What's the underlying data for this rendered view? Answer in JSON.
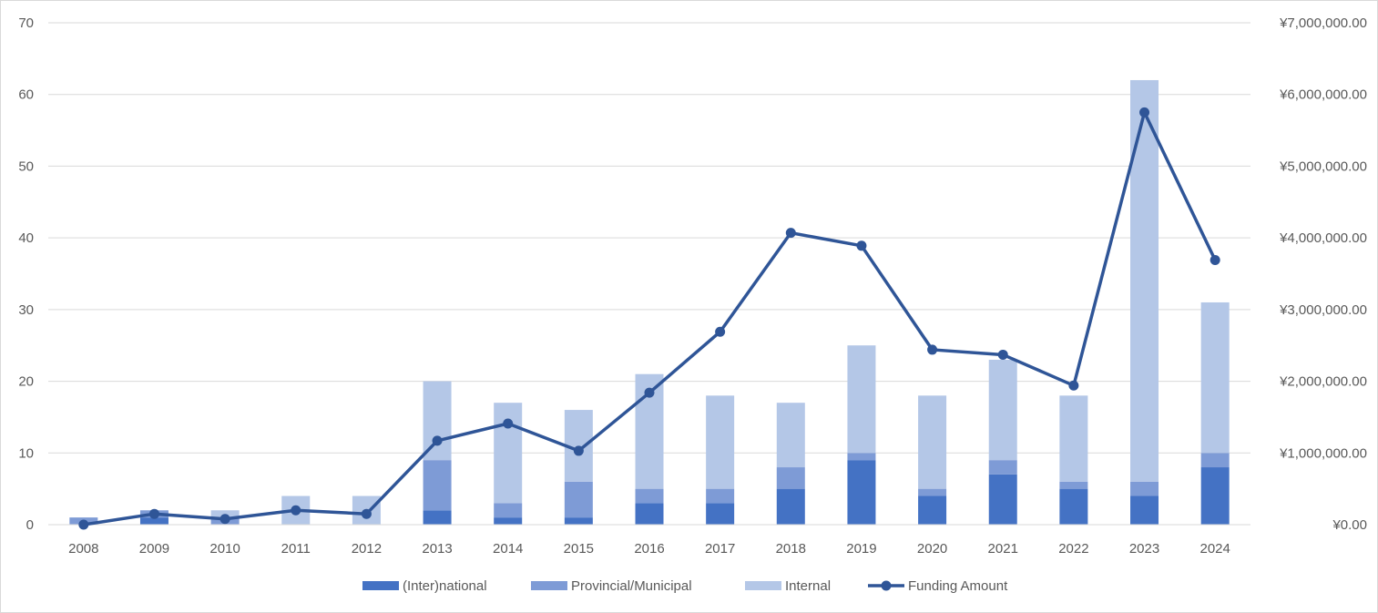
{
  "chart_data": {
    "type": "bar",
    "stacked": true,
    "categories": [
      "2008",
      "2009",
      "2010",
      "2011",
      "2012",
      "2013",
      "2014",
      "2015",
      "2016",
      "2017",
      "2018",
      "2019",
      "2020",
      "2021",
      "2022",
      "2023",
      "2024"
    ],
    "series": [
      {
        "name": "(Inter)national",
        "type": "bar",
        "axis": "left",
        "color": "#4472c4",
        "values": [
          0,
          1,
          0,
          0,
          0,
          2,
          1,
          1,
          3,
          3,
          5,
          9,
          4,
          7,
          5,
          4,
          8
        ]
      },
      {
        "name": "Provincial/Municipal",
        "type": "bar",
        "axis": "left",
        "color": "#7e9bd6",
        "values": [
          1,
          1,
          1,
          0,
          0,
          7,
          2,
          5,
          2,
          2,
          3,
          1,
          1,
          2,
          1,
          2,
          2
        ]
      },
      {
        "name": "Internal",
        "type": "bar",
        "axis": "left",
        "color": "#b4c7e7",
        "values": [
          0,
          0,
          1,
          4,
          4,
          11,
          14,
          10,
          16,
          13,
          9,
          15,
          13,
          14,
          12,
          56,
          21
        ]
      },
      {
        "name": "Funding Amount",
        "type": "line",
        "axis": "right",
        "color": "#2f5597",
        "values": [
          0,
          150000,
          80000,
          200000,
          150000,
          1170000,
          1410000,
          1030000,
          1840000,
          2690000,
          4070000,
          3890000,
          2440000,
          2370000,
          1940000,
          5750000,
          3690000
        ]
      }
    ],
    "y_left": {
      "min": 0,
      "max": 70,
      "ticks": [
        "0",
        "10",
        "20",
        "30",
        "40",
        "50",
        "60",
        "70"
      ]
    },
    "y_right": {
      "min": 0,
      "max": 7000000,
      "ticks": [
        "¥0.00",
        "¥1,000,000.00",
        "¥2,000,000.00",
        "¥3,000,000.00",
        "¥4,000,000.00",
        "¥5,000,000.00",
        "¥6,000,000.00",
        "¥7,000,000.00"
      ]
    },
    "grid": true,
    "legend_position": "bottom",
    "title": "",
    "xlabel": "",
    "ylabel": ""
  }
}
